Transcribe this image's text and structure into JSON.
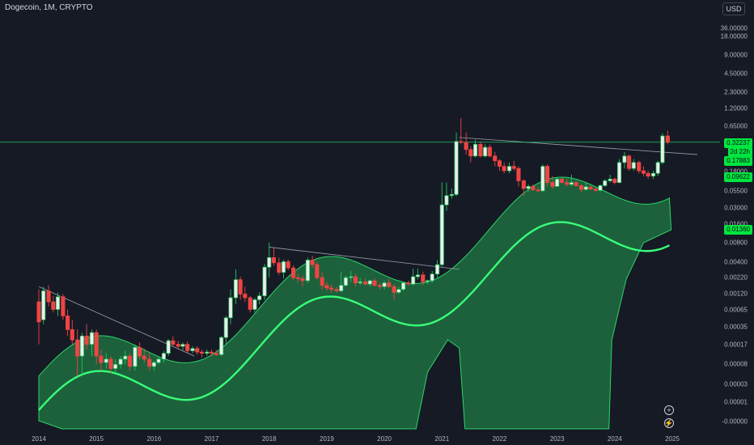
{
  "header": {
    "title": "Dogecoin, 1M, CRYPTO",
    "currency": "USD"
  },
  "price_labels": {
    "last_price": "0.32237",
    "countdown": "2d 22h",
    "price_2": "0.17883",
    "price_3": "0.09622",
    "price_4": "0.01360"
  },
  "controls": {
    "zoom_in": "+",
    "auto_scale": "⚡"
  },
  "colors": {
    "background": "#161a25",
    "up": "#22c55e",
    "down": "#ef4444",
    "band_fill": "#1f7a43",
    "band_edge": "#2bd46a",
    "main_line": "#39ff7a",
    "last_price_line": "#22c55e"
  },
  "chart_data": {
    "type": "candlestick",
    "title": "Dogecoin, 1M, CRYPTO",
    "y_scale": "log",
    "y_ticks": [
      "36.00000",
      "18.00000",
      "9.00000",
      "4.50000",
      "2.30000",
      "1.20000",
      "0.65000",
      "0.18000",
      "0.05500",
      "0.03000",
      "0.01600",
      "0.00800",
      "0.00400",
      "0.00220",
      "0.00120",
      "0.00065",
      "0.00035",
      "0.00017",
      "0.00008",
      "0.00003",
      "0.00001",
      "-0.00000"
    ],
    "x_ticks": [
      "2014",
      "2015",
      "2016",
      "2017",
      "2018",
      "2019",
      "2020",
      "2021",
      "2022",
      "2023",
      "2024",
      "2025"
    ],
    "x_range": [
      2014.0,
      2025.0
    ],
    "candles": [
      {
        "t": 2014.0,
        "o": 0.0013,
        "h": 0.002,
        "l": 0.0003,
        "c": 0.00065
      },
      {
        "t": 2014.08,
        "o": 0.0007,
        "h": 0.0022,
        "l": 0.0006,
        "c": 0.0019
      },
      {
        "t": 2014.17,
        "o": 0.0019,
        "h": 0.0023,
        "l": 0.0011,
        "c": 0.0013
      },
      {
        "t": 2014.25,
        "o": 0.0013,
        "h": 0.0016,
        "l": 0.0009,
        "c": 0.001
      },
      {
        "t": 2014.33,
        "o": 0.001,
        "h": 0.0018,
        "l": 0.0008,
        "c": 0.00155
      },
      {
        "t": 2014.42,
        "o": 0.00155,
        "h": 0.0017,
        "l": 0.0007,
        "c": 0.0008
      },
      {
        "t": 2014.5,
        "o": 0.0008,
        "h": 0.001,
        "l": 0.0004,
        "c": 0.0005
      },
      {
        "t": 2014.58,
        "o": 0.0005,
        "h": 0.0007,
        "l": 0.0003,
        "c": 0.00035
      },
      {
        "t": 2014.67,
        "o": 0.00035,
        "h": 0.0005,
        "l": 0.0001,
        "c": 0.0002
      },
      {
        "t": 2014.75,
        "o": 0.0002,
        "h": 0.00045,
        "l": 0.0001,
        "c": 0.0004
      },
      {
        "t": 2014.83,
        "o": 0.0004,
        "h": 0.0006,
        "l": 0.00025,
        "c": 0.0003
      },
      {
        "t": 2014.92,
        "o": 0.0003,
        "h": 0.0005,
        "l": 0.0002,
        "c": 0.00045
      },
      {
        "t": 2015.0,
        "o": 0.00045,
        "h": 0.0005,
        "l": 0.00015,
        "c": 0.0002
      },
      {
        "t": 2015.08,
        "o": 0.0002,
        "h": 0.00025,
        "l": 0.00012,
        "c": 0.00016
      },
      {
        "t": 2015.17,
        "o": 0.00016,
        "h": 0.00022,
        "l": 0.00013,
        "c": 0.00018
      },
      {
        "t": 2015.25,
        "o": 0.00018,
        "h": 0.0002,
        "l": 0.00011,
        "c": 0.00013
      },
      {
        "t": 2015.33,
        "o": 0.00013,
        "h": 0.00018,
        "l": 0.00011,
        "c": 0.00015
      },
      {
        "t": 2015.42,
        "o": 0.00015,
        "h": 0.0002,
        "l": 0.00013,
        "c": 0.00018
      },
      {
        "t": 2015.5,
        "o": 0.00018,
        "h": 0.00024,
        "l": 0.00015,
        "c": 0.0002
      },
      {
        "t": 2015.58,
        "o": 0.0002,
        "h": 0.00022,
        "l": 0.00012,
        "c": 0.00014
      },
      {
        "t": 2015.67,
        "o": 0.00014,
        "h": 0.0003,
        "l": 0.00012,
        "c": 0.00027
      },
      {
        "t": 2015.75,
        "o": 0.00027,
        "h": 0.00032,
        "l": 0.00018,
        "c": 0.0002
      },
      {
        "t": 2015.83,
        "o": 0.0002,
        "h": 0.00026,
        "l": 0.00016,
        "c": 0.00018
      },
      {
        "t": 2015.92,
        "o": 0.00018,
        "h": 0.00022,
        "l": 0.00012,
        "c": 0.00014
      },
      {
        "t": 2016.0,
        "o": 0.00014,
        "h": 0.00017,
        "l": 0.00012,
        "c": 0.00016
      },
      {
        "t": 2016.08,
        "o": 0.00016,
        "h": 0.0002,
        "l": 0.00015,
        "c": 0.00018
      },
      {
        "t": 2016.17,
        "o": 0.00018,
        "h": 0.00024,
        "l": 0.00016,
        "c": 0.00022
      },
      {
        "t": 2016.25,
        "o": 0.00022,
        "h": 0.00036,
        "l": 0.0002,
        "c": 0.00034
      },
      {
        "t": 2016.33,
        "o": 0.00034,
        "h": 0.0004,
        "l": 0.00028,
        "c": 0.0003
      },
      {
        "t": 2016.42,
        "o": 0.0003,
        "h": 0.00034,
        "l": 0.00026,
        "c": 0.00028
      },
      {
        "t": 2016.5,
        "o": 0.00028,
        "h": 0.00032,
        "l": 0.00024,
        "c": 0.0003
      },
      {
        "t": 2016.58,
        "o": 0.0003,
        "h": 0.00033,
        "l": 0.00022,
        "c": 0.00024
      },
      {
        "t": 2016.67,
        "o": 0.00024,
        "h": 0.00028,
        "l": 0.00022,
        "c": 0.00026
      },
      {
        "t": 2016.75,
        "o": 0.00026,
        "h": 0.00028,
        "l": 0.00021,
        "c": 0.00023
      },
      {
        "t": 2016.83,
        "o": 0.00023,
        "h": 0.00025,
        "l": 0.00019,
        "c": 0.00022
      },
      {
        "t": 2016.92,
        "o": 0.00022,
        "h": 0.00025,
        "l": 0.0002,
        "c": 0.00023
      },
      {
        "t": 2017.0,
        "o": 0.00023,
        "h": 0.00025,
        "l": 0.0002,
        "c": 0.00022
      },
      {
        "t": 2017.08,
        "o": 0.00022,
        "h": 0.00025,
        "l": 0.0002,
        "c": 0.00021
      },
      {
        "t": 2017.17,
        "o": 0.00021,
        "h": 0.0004,
        "l": 0.0002,
        "c": 0.00038
      },
      {
        "t": 2017.25,
        "o": 0.00038,
        "h": 0.0008,
        "l": 0.0003,
        "c": 0.00075
      },
      {
        "t": 2017.33,
        "o": 0.00075,
        "h": 0.002,
        "l": 0.0006,
        "c": 0.0015
      },
      {
        "t": 2017.42,
        "o": 0.0015,
        "h": 0.004,
        "l": 0.0012,
        "c": 0.0028
      },
      {
        "t": 2017.5,
        "o": 0.0028,
        "h": 0.0031,
        "l": 0.0014,
        "c": 0.0017
      },
      {
        "t": 2017.58,
        "o": 0.0017,
        "h": 0.0022,
        "l": 0.0013,
        "c": 0.0015
      },
      {
        "t": 2017.67,
        "o": 0.0015,
        "h": 0.0016,
        "l": 0.0009,
        "c": 0.001
      },
      {
        "t": 2017.75,
        "o": 0.001,
        "h": 0.0015,
        "l": 0.0009,
        "c": 0.0014
      },
      {
        "t": 2017.83,
        "o": 0.0014,
        "h": 0.0018,
        "l": 0.0012,
        "c": 0.0016
      },
      {
        "t": 2017.92,
        "o": 0.0016,
        "h": 0.0048,
        "l": 0.0014,
        "c": 0.0043
      },
      {
        "t": 2018.0,
        "o": 0.0043,
        "h": 0.0101,
        "l": 0.003,
        "c": 0.006
      },
      {
        "t": 2018.08,
        "o": 0.006,
        "h": 0.0086,
        "l": 0.0045,
        "c": 0.005
      },
      {
        "t": 2018.17,
        "o": 0.005,
        "h": 0.006,
        "l": 0.0033,
        "c": 0.0036
      },
      {
        "t": 2018.25,
        "o": 0.0036,
        "h": 0.0056,
        "l": 0.0029,
        "c": 0.0052
      },
      {
        "t": 2018.33,
        "o": 0.0052,
        "h": 0.0056,
        "l": 0.0039,
        "c": 0.0042
      },
      {
        "t": 2018.42,
        "o": 0.0042,
        "h": 0.0046,
        "l": 0.0028,
        "c": 0.003
      },
      {
        "t": 2018.5,
        "o": 0.003,
        "h": 0.0034,
        "l": 0.0025,
        "c": 0.0029
      },
      {
        "t": 2018.58,
        "o": 0.0029,
        "h": 0.0032,
        "l": 0.0022,
        "c": 0.0027
      },
      {
        "t": 2018.67,
        "o": 0.0027,
        "h": 0.006,
        "l": 0.0025,
        "c": 0.0055
      },
      {
        "t": 2018.75,
        "o": 0.0055,
        "h": 0.0064,
        "l": 0.0042,
        "c": 0.0047
      },
      {
        "t": 2018.83,
        "o": 0.0047,
        "h": 0.0052,
        "l": 0.0028,
        "c": 0.003
      },
      {
        "t": 2018.92,
        "o": 0.003,
        "h": 0.0036,
        "l": 0.002,
        "c": 0.0023
      },
      {
        "t": 2019.0,
        "o": 0.0023,
        "h": 0.0026,
        "l": 0.0019,
        "c": 0.0021
      },
      {
        "t": 2019.08,
        "o": 0.0021,
        "h": 0.0024,
        "l": 0.0018,
        "c": 0.002
      },
      {
        "t": 2019.17,
        "o": 0.002,
        "h": 0.0022,
        "l": 0.0018,
        "c": 0.0019
      },
      {
        "t": 2019.25,
        "o": 0.0019,
        "h": 0.0037,
        "l": 0.0018,
        "c": 0.0023
      },
      {
        "t": 2019.33,
        "o": 0.0023,
        "h": 0.0032,
        "l": 0.0022,
        "c": 0.003
      },
      {
        "t": 2019.42,
        "o": 0.003,
        "h": 0.0038,
        "l": 0.0026,
        "c": 0.0031
      },
      {
        "t": 2019.5,
        "o": 0.0031,
        "h": 0.0034,
        "l": 0.0022,
        "c": 0.0025
      },
      {
        "t": 2019.58,
        "o": 0.0025,
        "h": 0.003,
        "l": 0.0023,
        "c": 0.0026
      },
      {
        "t": 2019.67,
        "o": 0.0026,
        "h": 0.0029,
        "l": 0.0023,
        "c": 0.0024
      },
      {
        "t": 2019.75,
        "o": 0.0024,
        "h": 0.0028,
        "l": 0.0022,
        "c": 0.0027
      },
      {
        "t": 2019.83,
        "o": 0.0027,
        "h": 0.0029,
        "l": 0.0022,
        "c": 0.0023
      },
      {
        "t": 2019.92,
        "o": 0.0023,
        "h": 0.0025,
        "l": 0.002,
        "c": 0.0022
      },
      {
        "t": 2020.0,
        "o": 0.0022,
        "h": 0.0027,
        "l": 0.002,
        "c": 0.0025
      },
      {
        "t": 2020.08,
        "o": 0.0025,
        "h": 0.0029,
        "l": 0.0021,
        "c": 0.0022
      },
      {
        "t": 2020.17,
        "o": 0.0022,
        "h": 0.0024,
        "l": 0.0014,
        "c": 0.0018
      },
      {
        "t": 2020.25,
        "o": 0.0018,
        "h": 0.0022,
        "l": 0.0017,
        "c": 0.002
      },
      {
        "t": 2020.33,
        "o": 0.002,
        "h": 0.0026,
        "l": 0.0019,
        "c": 0.0025
      },
      {
        "t": 2020.42,
        "o": 0.0025,
        "h": 0.0027,
        "l": 0.0023,
        "c": 0.0024
      },
      {
        "t": 2020.5,
        "o": 0.0024,
        "h": 0.0041,
        "l": 0.0023,
        "c": 0.0031
      },
      {
        "t": 2020.58,
        "o": 0.0031,
        "h": 0.0041,
        "l": 0.0028,
        "c": 0.0033
      },
      {
        "t": 2020.67,
        "o": 0.0033,
        "h": 0.0037,
        "l": 0.0023,
        "c": 0.0026
      },
      {
        "t": 2020.75,
        "o": 0.0026,
        "h": 0.0028,
        "l": 0.0024,
        "c": 0.0027
      },
      {
        "t": 2020.83,
        "o": 0.0027,
        "h": 0.0038,
        "l": 0.0025,
        "c": 0.0034
      },
      {
        "t": 2020.92,
        "o": 0.0034,
        "h": 0.0055,
        "l": 0.003,
        "c": 0.0047
      },
      {
        "t": 2021.0,
        "o": 0.0047,
        "h": 0.08,
        "l": 0.0044,
        "c": 0.037
      },
      {
        "t": 2021.08,
        "o": 0.037,
        "h": 0.08,
        "l": 0.03,
        "c": 0.051
      },
      {
        "t": 2021.17,
        "o": 0.051,
        "h": 0.065,
        "l": 0.046,
        "c": 0.053
      },
      {
        "t": 2021.25,
        "o": 0.053,
        "h": 0.45,
        "l": 0.05,
        "c": 0.33
      },
      {
        "t": 2021.33,
        "o": 0.33,
        "h": 0.74,
        "l": 0.3,
        "c": 0.32
      },
      {
        "t": 2021.42,
        "o": 0.32,
        "h": 0.45,
        "l": 0.21,
        "c": 0.25
      },
      {
        "t": 2021.5,
        "o": 0.25,
        "h": 0.28,
        "l": 0.16,
        "c": 0.2
      },
      {
        "t": 2021.58,
        "o": 0.2,
        "h": 0.35,
        "l": 0.19,
        "c": 0.3
      },
      {
        "t": 2021.67,
        "o": 0.3,
        "h": 0.33,
        "l": 0.19,
        "c": 0.2
      },
      {
        "t": 2021.75,
        "o": 0.2,
        "h": 0.3,
        "l": 0.19,
        "c": 0.27
      },
      {
        "t": 2021.83,
        "o": 0.27,
        "h": 0.3,
        "l": 0.19,
        "c": 0.2
      },
      {
        "t": 2021.92,
        "o": 0.2,
        "h": 0.23,
        "l": 0.14,
        "c": 0.17
      },
      {
        "t": 2022.0,
        "o": 0.17,
        "h": 0.18,
        "l": 0.12,
        "c": 0.14
      },
      {
        "t": 2022.08,
        "o": 0.14,
        "h": 0.16,
        "l": 0.11,
        "c": 0.12
      },
      {
        "t": 2022.17,
        "o": 0.12,
        "h": 0.16,
        "l": 0.11,
        "c": 0.14
      },
      {
        "t": 2022.25,
        "o": 0.14,
        "h": 0.17,
        "l": 0.12,
        "c": 0.13
      },
      {
        "t": 2022.33,
        "o": 0.13,
        "h": 0.14,
        "l": 0.07,
        "c": 0.085
      },
      {
        "t": 2022.42,
        "o": 0.085,
        "h": 0.09,
        "l": 0.05,
        "c": 0.065
      },
      {
        "t": 2022.5,
        "o": 0.065,
        "h": 0.075,
        "l": 0.058,
        "c": 0.07
      },
      {
        "t": 2022.58,
        "o": 0.07,
        "h": 0.075,
        "l": 0.06,
        "c": 0.062
      },
      {
        "t": 2022.67,
        "o": 0.062,
        "h": 0.067,
        "l": 0.057,
        "c": 0.06
      },
      {
        "t": 2022.75,
        "o": 0.06,
        "h": 0.15,
        "l": 0.058,
        "c": 0.14
      },
      {
        "t": 2022.83,
        "o": 0.14,
        "h": 0.15,
        "l": 0.07,
        "c": 0.08
      },
      {
        "t": 2022.92,
        "o": 0.08,
        "h": 0.1,
        "l": 0.065,
        "c": 0.07
      },
      {
        "t": 2023.0,
        "o": 0.07,
        "h": 0.095,
        "l": 0.07,
        "c": 0.09
      },
      {
        "t": 2023.08,
        "o": 0.09,
        "h": 0.095,
        "l": 0.078,
        "c": 0.08
      },
      {
        "t": 2023.17,
        "o": 0.08,
        "h": 0.09,
        "l": 0.07,
        "c": 0.075
      },
      {
        "t": 2023.25,
        "o": 0.075,
        "h": 0.105,
        "l": 0.07,
        "c": 0.08
      },
      {
        "t": 2023.33,
        "o": 0.08,
        "h": 0.085,
        "l": 0.07,
        "c": 0.072
      },
      {
        "t": 2023.42,
        "o": 0.072,
        "h": 0.075,
        "l": 0.057,
        "c": 0.063
      },
      {
        "t": 2023.5,
        "o": 0.063,
        "h": 0.08,
        "l": 0.06,
        "c": 0.069
      },
      {
        "t": 2023.58,
        "o": 0.069,
        "h": 0.07,
        "l": 0.062,
        "c": 0.064
      },
      {
        "t": 2023.67,
        "o": 0.064,
        "h": 0.066,
        "l": 0.058,
        "c": 0.061
      },
      {
        "t": 2023.75,
        "o": 0.061,
        "h": 0.075,
        "l": 0.059,
        "c": 0.072
      },
      {
        "t": 2023.83,
        "o": 0.072,
        "h": 0.09,
        "l": 0.069,
        "c": 0.085
      },
      {
        "t": 2023.92,
        "o": 0.085,
        "h": 0.105,
        "l": 0.08,
        "c": 0.09
      },
      {
        "t": 2024.0,
        "o": 0.09,
        "h": 0.095,
        "l": 0.075,
        "c": 0.08
      },
      {
        "t": 2024.08,
        "o": 0.08,
        "h": 0.18,
        "l": 0.078,
        "c": 0.16
      },
      {
        "t": 2024.17,
        "o": 0.16,
        "h": 0.23,
        "l": 0.13,
        "c": 0.2
      },
      {
        "t": 2024.25,
        "o": 0.2,
        "h": 0.21,
        "l": 0.12,
        "c": 0.13
      },
      {
        "t": 2024.33,
        "o": 0.13,
        "h": 0.18,
        "l": 0.12,
        "c": 0.16
      },
      {
        "t": 2024.42,
        "o": 0.16,
        "h": 0.17,
        "l": 0.11,
        "c": 0.12
      },
      {
        "t": 2024.5,
        "o": 0.12,
        "h": 0.14,
        "l": 0.1,
        "c": 0.11
      },
      {
        "t": 2024.58,
        "o": 0.11,
        "h": 0.12,
        "l": 0.09,
        "c": 0.1
      },
      {
        "t": 2024.67,
        "o": 0.1,
        "h": 0.12,
        "l": 0.09,
        "c": 0.11
      },
      {
        "t": 2024.75,
        "o": 0.11,
        "h": 0.17,
        "l": 0.1,
        "c": 0.16
      },
      {
        "t": 2024.83,
        "o": 0.16,
        "h": 0.44,
        "l": 0.15,
        "c": 0.4
      },
      {
        "t": 2024.92,
        "o": 0.4,
        "h": 0.48,
        "l": 0.3,
        "c": 0.32237
      }
    ],
    "trendlines": [
      {
        "from": [
          2014.0,
          0.0022
        ],
        "to": [
          2016.7,
          0.0002
        ]
      },
      {
        "from": [
          2018.0,
          0.0086
        ],
        "to": [
          2021.3,
          0.004
        ]
      },
      {
        "from": [
          2021.3,
          0.38
        ],
        "to": [
          2025.5,
          0.21
        ]
      }
    ],
    "last_price_line": 0.32237
  }
}
